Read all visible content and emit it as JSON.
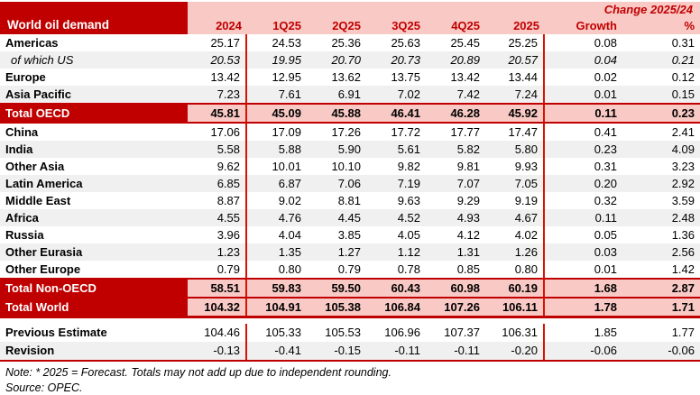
{
  "chart_data": {
    "type": "table",
    "title": "World oil demand",
    "change_header": "Change 2025/24",
    "columns": [
      "2024",
      "1Q25",
      "2Q25",
      "3Q25",
      "4Q25",
      "2025",
      "Growth",
      "%"
    ],
    "rows": [
      {
        "label": "Americas",
        "kind": "normal",
        "values": [
          "25.17",
          "24.53",
          "25.36",
          "25.63",
          "25.45",
          "25.25",
          "0.08",
          "0.31"
        ]
      },
      {
        "label": "of which US",
        "kind": "italic",
        "values": [
          "20.53",
          "19.95",
          "20.70",
          "20.73",
          "20.89",
          "20.57",
          "0.04",
          "0.21"
        ]
      },
      {
        "label": "Europe",
        "kind": "normal",
        "values": [
          "13.42",
          "12.95",
          "13.62",
          "13.75",
          "13.42",
          "13.44",
          "0.02",
          "0.12"
        ]
      },
      {
        "label": "Asia Pacific",
        "kind": "normal",
        "values": [
          "7.23",
          "7.61",
          "6.91",
          "7.02",
          "7.42",
          "7.24",
          "0.01",
          "0.15"
        ]
      },
      {
        "label": "Total OECD",
        "kind": "total",
        "values": [
          "45.81",
          "45.09",
          "45.88",
          "46.41",
          "46.28",
          "45.92",
          "0.11",
          "0.23"
        ]
      },
      {
        "label": "China",
        "kind": "normal",
        "values": [
          "17.06",
          "17.09",
          "17.26",
          "17.72",
          "17.77",
          "17.47",
          "0.41",
          "2.41"
        ]
      },
      {
        "label": "India",
        "kind": "normal",
        "values": [
          "5.58",
          "5.88",
          "5.90",
          "5.61",
          "5.82",
          "5.80",
          "0.23",
          "4.09"
        ]
      },
      {
        "label": "Other Asia",
        "kind": "normal",
        "values": [
          "9.62",
          "10.01",
          "10.10",
          "9.82",
          "9.81",
          "9.93",
          "0.31",
          "3.23"
        ]
      },
      {
        "label": "Latin America",
        "kind": "normal",
        "values": [
          "6.85",
          "6.87",
          "7.06",
          "7.19",
          "7.07",
          "7.05",
          "0.20",
          "2.92"
        ]
      },
      {
        "label": "Middle East",
        "kind": "normal",
        "values": [
          "8.87",
          "9.02",
          "8.81",
          "9.63",
          "9.29",
          "9.19",
          "0.32",
          "3.59"
        ]
      },
      {
        "label": "Africa",
        "kind": "normal",
        "values": [
          "4.55",
          "4.76",
          "4.45",
          "4.52",
          "4.93",
          "4.67",
          "0.11",
          "2.48"
        ]
      },
      {
        "label": "Russia",
        "kind": "normal",
        "values": [
          "3.96",
          "4.04",
          "3.85",
          "4.05",
          "4.12",
          "4.02",
          "0.05",
          "1.36"
        ]
      },
      {
        "label": "Other Eurasia",
        "kind": "normal",
        "values": [
          "1.23",
          "1.35",
          "1.27",
          "1.12",
          "1.31",
          "1.26",
          "0.03",
          "2.56"
        ]
      },
      {
        "label": "Other Europe",
        "kind": "normal",
        "values": [
          "0.79",
          "0.80",
          "0.79",
          "0.78",
          "0.85",
          "0.80",
          "0.01",
          "1.42"
        ]
      },
      {
        "label": "Total Non-OECD",
        "kind": "total",
        "values": [
          "58.51",
          "59.83",
          "59.50",
          "60.43",
          "60.98",
          "60.19",
          "1.68",
          "2.87"
        ]
      },
      {
        "label": "Total World",
        "kind": "total",
        "values": [
          "104.32",
          "104.91",
          "105.38",
          "106.84",
          "107.26",
          "106.11",
          "1.78",
          "1.71"
        ]
      }
    ],
    "footer_rows": [
      {
        "label": "Previous Estimate",
        "values": [
          "104.46",
          "105.33",
          "105.53",
          "106.96",
          "107.37",
          "106.31",
          "1.85",
          "1.77"
        ]
      },
      {
        "label": "Revision",
        "values": [
          "-0.13",
          "-0.41",
          "-0.15",
          "-0.11",
          "-0.11",
          "-0.20",
          "-0.06",
          "-0.06"
        ]
      }
    ],
    "notes": [
      "Note: * 2025 = Forecast. Totals may not add up due to independent rounding.",
      "Source: OPEC."
    ]
  },
  "colors": {
    "dark_red": "#C00000",
    "pink": "#F9C9C5",
    "stripe": "#F0F0F0",
    "line_red": "#D81400",
    "total_line": "#C00000",
    "header_text": "#C00000"
  }
}
